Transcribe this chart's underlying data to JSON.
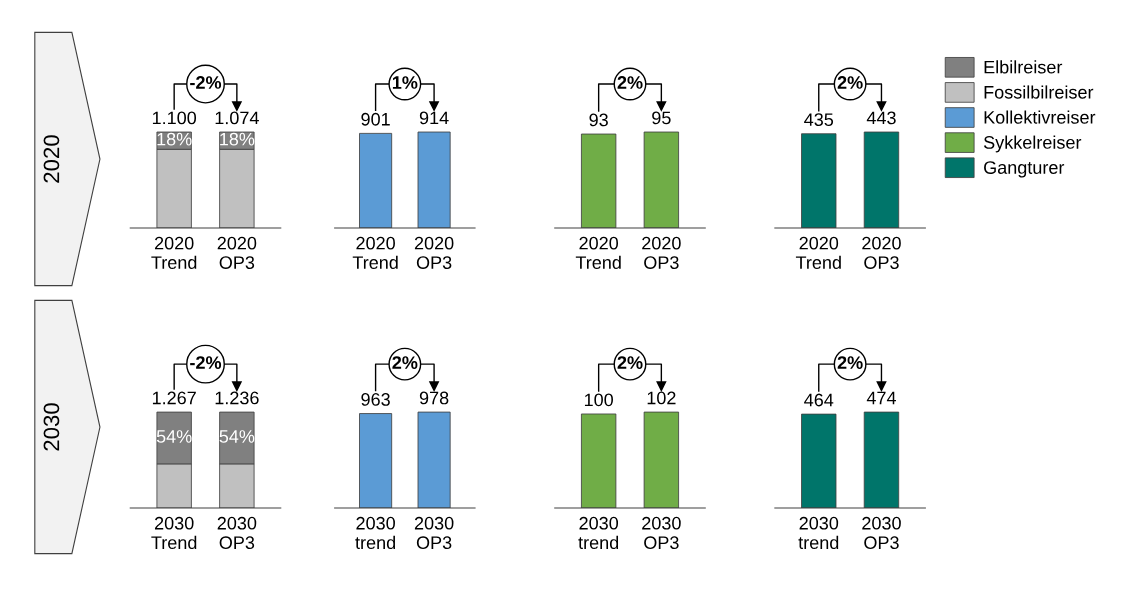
{
  "chart_data": [
    {
      "type": "bar",
      "stacked": true,
      "categories": [
        "2020\nTrend",
        "2020\nOP3"
      ],
      "series": [
        {
          "name": "Fossilbilreiser",
          "color": "#c0c0c0",
          "values": [
            82,
            82
          ]
        },
        {
          "name": "Elbilreiser",
          "color": "#808080",
          "values": [
            18,
            18
          ],
          "value_labels": [
            "18%",
            "18%"
          ]
        }
      ],
      "annotations": [
        "-2%",
        "2020",
        {
          "text": "1.100",
          "x": "2020\nTrend",
          "y": 100
        },
        {
          "text": "1.074",
          "x": "2020\nOP3",
          "y": 100
        }
      ],
      "legend": "top right"
    },
    {
      "type": "bar",
      "categories": [
        "2020\nTrend",
        "2020\nOP3"
      ],
      "series": [
        {
          "name": "Kollektivreiser",
          "color": "#5b9bd5",
          "values": [
            901,
            914
          ]
        }
      ],
      "data_labels": true,
      "annotations": [
        "1%"
      ]
    },
    {
      "type": "bar",
      "categories": [
        "2020\nTrend",
        "2020\nOP3"
      ],
      "series": [
        {
          "name": "Sykkelreiser",
          "color": "#70ad47",
          "values": [
            93,
            95
          ]
        }
      ],
      "data_labels": true,
      "annotations": [
        "2%"
      ]
    },
    {
      "type": "bar",
      "categories": [
        "2020\nTrend",
        "2020\nOP3"
      ],
      "series": [
        {
          "name": "Gangturer",
          "color": "#00756a",
          "values": [
            435,
            443
          ]
        }
      ],
      "data_labels": true,
      "annotations": [
        "2%"
      ]
    },
    {
      "type": "bar",
      "stacked": true,
      "categories": [
        "2030\nTrend",
        "2030\nOP3"
      ],
      "series": [
        {
          "name": "Fossilbilreiser",
          "color": "#c0c0c0",
          "values": [
            46,
            46
          ]
        },
        {
          "name": "Elbilreiser",
          "color": "#808080",
          "values": [
            54,
            54
          ],
          "value_labels": [
            "54%",
            "54%"
          ]
        }
      ],
      "annotations": [
        "-2%",
        "2030",
        {
          "text": "1.267",
          "x": "2030\nTrend",
          "y": 100
        },
        {
          "text": "1.236",
          "x": "2030\nOP3",
          "y": 100
        }
      ]
    },
    {
      "type": "bar",
      "categories": [
        "2030\ntrend",
        "2030\nOP3"
      ],
      "series": [
        {
          "name": "Kollektivreiser",
          "color": "#5b9bd5",
          "values": [
            963,
            978
          ]
        }
      ],
      "data_labels": true,
      "annotations": [
        "2%"
      ]
    },
    {
      "type": "bar",
      "categories": [
        "2030\ntrend",
        "2030\nOP3"
      ],
      "series": [
        {
          "name": "Sykkelreiser",
          "color": "#70ad47",
          "values": [
            100,
            102
          ]
        }
      ],
      "data_labels": true,
      "annotations": [
        "2%"
      ]
    },
    {
      "type": "bar",
      "categories": [
        "2030\ntrend",
        "2030\nOP3"
      ],
      "series": [
        {
          "name": "Gangturer",
          "color": "#00756a",
          "values": [
            464,
            474
          ]
        }
      ],
      "data_labels": true,
      "annotations": [
        "2%"
      ]
    }
  ]
}
